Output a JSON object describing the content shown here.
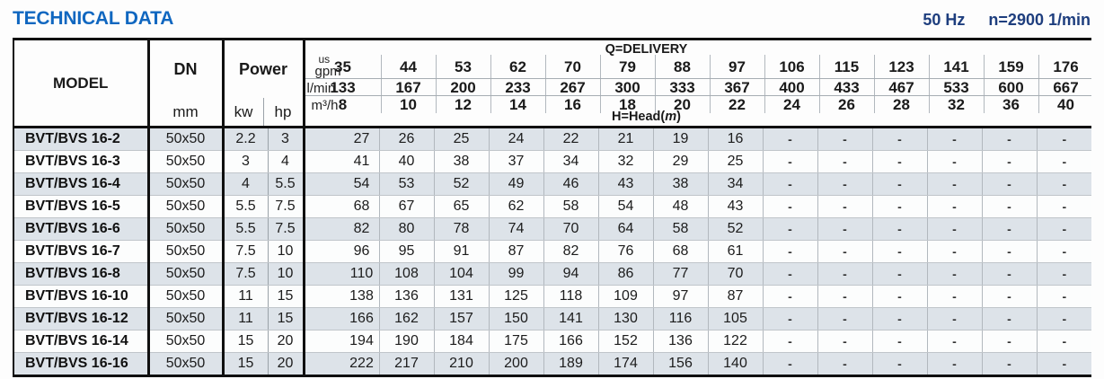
{
  "page": {
    "title": "TECHNICAL DATA",
    "frequency": "50 Hz",
    "speed": "n=2900 1/min"
  },
  "table": {
    "model_header": "MODEL",
    "dn_header": "DN",
    "dn_unit": "mm",
    "power_header": "Power",
    "kw_unit": "kw",
    "hp_unit": "hp",
    "delivery_label": "Q=DELIVERY",
    "head_label": {
      "prefix": "H=Head(",
      "unit": "m",
      "suffix": ")"
    },
    "flow": {
      "gpm": {
        "unit_top": "us",
        "unit_bottom": "gpm",
        "values": [
          "35",
          "44",
          "53",
          "62",
          "70",
          "79",
          "88",
          "97",
          "106",
          "115",
          "123",
          "141",
          "159",
          "176"
        ]
      },
      "lmin": {
        "unit": "l/min",
        "values": [
          "133",
          "167",
          "200",
          "233",
          "267",
          "300",
          "333",
          "367",
          "400",
          "433",
          "467",
          "533",
          "600",
          "667"
        ]
      },
      "m3h": {
        "unit": "m³/h",
        "values": [
          "8",
          "10",
          "12",
          "14",
          "16",
          "18",
          "20",
          "22",
          "24",
          "26",
          "28",
          "32",
          "36",
          "40"
        ]
      }
    },
    "rows": [
      {
        "model": "BVT/BVS 16-2",
        "dn": "50x50",
        "kw": "2.2",
        "hp": "3",
        "heads": [
          "27",
          "26",
          "25",
          "24",
          "22",
          "21",
          "19",
          "16",
          "-",
          "-",
          "-",
          "-",
          "-",
          "-"
        ]
      },
      {
        "model": "BVT/BVS 16-3",
        "dn": "50x50",
        "kw": "3",
        "hp": "4",
        "heads": [
          "41",
          "40",
          "38",
          "37",
          "34",
          "32",
          "29",
          "25",
          "-",
          "-",
          "-",
          "-",
          "-",
          "-"
        ]
      },
      {
        "model": "BVT/BVS 16-4",
        "dn": "50x50",
        "kw": "4",
        "hp": "5.5",
        "heads": [
          "54",
          "53",
          "52",
          "49",
          "46",
          "43",
          "38",
          "34",
          "-",
          "-",
          "-",
          "-",
          "-",
          "-"
        ]
      },
      {
        "model": "BVT/BVS 16-5",
        "dn": "50x50",
        "kw": "5.5",
        "hp": "7.5",
        "heads": [
          "68",
          "67",
          "65",
          "62",
          "58",
          "54",
          "48",
          "43",
          "-",
          "-",
          "-",
          "-",
          "-",
          "-"
        ]
      },
      {
        "model": "BVT/BVS 16-6",
        "dn": "50x50",
        "kw": "5.5",
        "hp": "7.5",
        "heads": [
          "82",
          "80",
          "78",
          "74",
          "70",
          "64",
          "58",
          "52",
          "-",
          "-",
          "-",
          "-",
          "-",
          "-"
        ]
      },
      {
        "model": "BVT/BVS 16-7",
        "dn": "50x50",
        "kw": "7.5",
        "hp": "10",
        "heads": [
          "96",
          "95",
          "91",
          "87",
          "82",
          "76",
          "68",
          "61",
          "-",
          "-",
          "-",
          "-",
          "-",
          "-"
        ]
      },
      {
        "model": "BVT/BVS 16-8",
        "dn": "50x50",
        "kw": "7.5",
        "hp": "10",
        "heads": [
          "110",
          "108",
          "104",
          "99",
          "94",
          "86",
          "77",
          "70",
          "-",
          "-",
          "-",
          "-",
          "-",
          "-"
        ]
      },
      {
        "model": "BVT/BVS 16-10",
        "dn": "50x50",
        "kw": "11",
        "hp": "15",
        "heads": [
          "138",
          "136",
          "131",
          "125",
          "118",
          "109",
          "97",
          "87",
          "-",
          "-",
          "-",
          "-",
          "-",
          "-"
        ]
      },
      {
        "model": "BVT/BVS 16-12",
        "dn": "50x50",
        "kw": "11",
        "hp": "15",
        "heads": [
          "166",
          "162",
          "157",
          "150",
          "141",
          "130",
          "116",
          "105",
          "-",
          "-",
          "-",
          "-",
          "-",
          "-"
        ]
      },
      {
        "model": "BVT/BVS 16-14",
        "dn": "50x50",
        "kw": "15",
        "hp": "20",
        "heads": [
          "194",
          "190",
          "184",
          "175",
          "166",
          "152",
          "136",
          "122",
          "-",
          "-",
          "-",
          "-",
          "-",
          "-"
        ]
      },
      {
        "model": "BVT/BVS 16-16",
        "dn": "50x50",
        "kw": "15",
        "hp": "20",
        "heads": [
          "222",
          "217",
          "210",
          "200",
          "189",
          "174",
          "156",
          "140",
          "-",
          "-",
          "-",
          "-",
          "-",
          "-"
        ]
      }
    ]
  }
}
